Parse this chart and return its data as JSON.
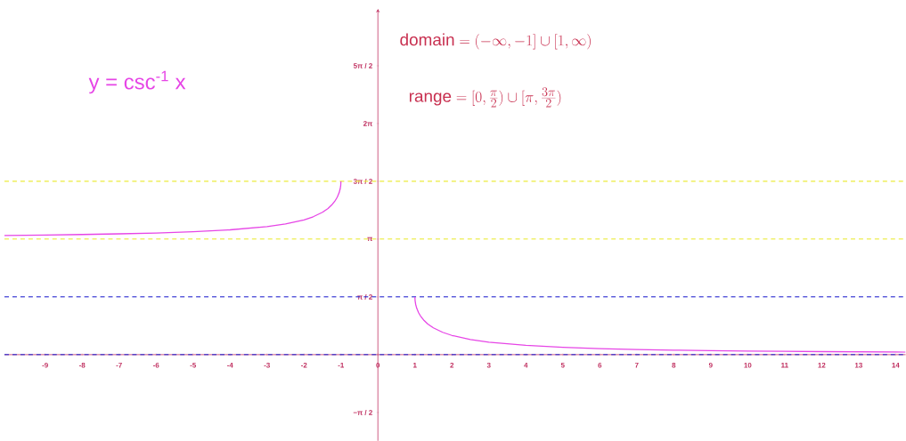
{
  "chart_data": {
    "type": "line",
    "title": "y = csc$^{-1}$ x",
    "annotations": [
      "\\mathrm{domain} = (-\\infty, -1] \\cup [1, \\infty)",
      "\\mathrm{range} = [0, \\frac{\\pi}{2}) \\cup [\\pi, \\frac{3\\pi}{2})"
    ],
    "series": [
      {
        "color": "#e645e6",
        "x": [
          -10.1,
          -9,
          -8,
          -7,
          -6,
          -5,
          -4,
          -3,
          -2.5,
          -2,
          -1.75,
          -1.5,
          -1.35,
          -1.25,
          -1.15,
          -1.1,
          -1.05,
          -1.02,
          -1.005,
          -1
        ],
        "values": [
          3.241,
          3.253,
          3.267,
          3.285,
          3.309,
          3.343,
          3.394,
          3.481,
          3.553,
          3.665,
          3.75,
          3.871,
          3.975,
          4.069,
          4.197,
          4.283,
          4.401,
          4.512,
          4.612,
          4.712
        ]
      },
      {
        "color": "#e645e6",
        "x": [
          1,
          1.005,
          1.02,
          1.05,
          1.1,
          1.15,
          1.25,
          1.35,
          1.5,
          1.75,
          2,
          2.5,
          3,
          4,
          5,
          6,
          7,
          8,
          9,
          10,
          11,
          12,
          13,
          14,
          14.27
        ],
        "values": [
          1.571,
          1.471,
          1.371,
          1.26,
          1.141,
          1.055,
          0.927,
          0.834,
          0.73,
          0.609,
          0.524,
          0.412,
          0.34,
          0.253,
          0.201,
          0.167,
          0.143,
          0.125,
          0.111,
          0.1,
          0.091,
          0.083,
          0.077,
          0.071,
          0.07
        ]
      }
    ],
    "xlim": [
      -10.1,
      14.27
    ],
    "ylim": [
      -2.34,
      9.4
    ],
    "xticks": [
      -9,
      -8,
      -7,
      -6,
      -5,
      -4,
      -3,
      -2,
      -1,
      0,
      1,
      2,
      3,
      4,
      5,
      6,
      7,
      8,
      9,
      10,
      11,
      12,
      13,
      14
    ],
    "yticks": [
      {
        "value": -1.5708,
        "label": "−π / 2"
      },
      {
        "value": 1.5708,
        "label": "π / 2"
      },
      {
        "value": 3.1416,
        "label": "π"
      },
      {
        "value": 4.7124,
        "label": "3π / 2"
      },
      {
        "value": 6.2832,
        "label": "2π"
      },
      {
        "value": 7.854,
        "label": "5π / 2"
      }
    ],
    "ref_lines": [
      {
        "axis": "y",
        "value": 4.7124,
        "color": "#ecec3c",
        "line_style": "dashed"
      },
      {
        "axis": "y",
        "value": 3.1416,
        "color": "#ecec3c",
        "line_style": "dashed"
      },
      {
        "axis": "y",
        "value": 1.5708,
        "color": "#2a2ad0",
        "line_style": "dashed"
      },
      {
        "axis": "y",
        "value": 0,
        "color": "#2a2ad0",
        "line_style": "dashed"
      }
    ],
    "grid": false
  }
}
